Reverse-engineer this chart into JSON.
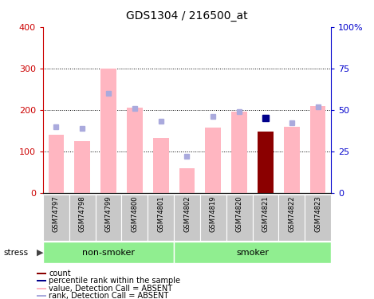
{
  "title": "GDS1304 / 216500_at",
  "samples": [
    "GSM74797",
    "GSM74798",
    "GSM74799",
    "GSM74800",
    "GSM74801",
    "GSM74802",
    "GSM74819",
    "GSM74820",
    "GSM74821",
    "GSM74822",
    "GSM74823"
  ],
  "values": [
    140,
    125,
    300,
    205,
    133,
    60,
    158,
    195,
    147,
    160,
    210
  ],
  "ranks": [
    40,
    39,
    60,
    51,
    43,
    22,
    46,
    49,
    45,
    42,
    52
  ],
  "highlight_sample": "GSM74821",
  "n_nonsmoker": 5,
  "bar_color_absent": "#FFB6C1",
  "bar_color_count": "#8B0000",
  "rank_color_absent": "#AAAADD",
  "rank_color_count": "#00008B",
  "ylim_left": [
    0,
    400
  ],
  "ylim_right": [
    0,
    100
  ],
  "yticks_left": [
    0,
    100,
    200,
    300,
    400
  ],
  "yticks_right": [
    0,
    25,
    50,
    75,
    100
  ],
  "ytick_labels_right": [
    "0",
    "25",
    "50",
    "75",
    "100%"
  ],
  "ylabel_left_color": "#CC0000",
  "ylabel_right_color": "#0000CC",
  "group_bg_color": "#90EE90",
  "label_bg_color": "#C8C8C8",
  "legend_items": [
    {
      "label": "count",
      "color": "#8B0000"
    },
    {
      "label": "percentile rank within the sample",
      "color": "#00008B"
    },
    {
      "label": "value, Detection Call = ABSENT",
      "color": "#FFB6C1"
    },
    {
      "label": "rank, Detection Call = ABSENT",
      "color": "#AAAADD"
    }
  ]
}
